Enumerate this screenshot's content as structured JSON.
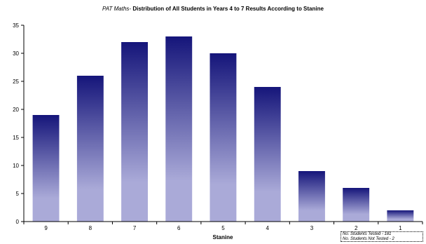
{
  "chart_data": {
    "type": "bar",
    "title_prefix": "PAT Maths-",
    "title": "Distribution of All Students in Years 4 to 7 Results According to Stanine",
    "xlabel": "Stanine",
    "ylabel": "",
    "categories": [
      "9",
      "8",
      "7",
      "6",
      "5",
      "4",
      "3",
      "2",
      "1"
    ],
    "values": [
      19,
      26,
      32,
      33,
      30,
      24,
      9,
      6,
      2
    ],
    "ylim": [
      0,
      35
    ],
    "yticks": [
      0,
      5,
      10,
      15,
      20,
      25,
      30,
      35
    ],
    "grid": false,
    "legend": "none",
    "colors": {
      "bar_top": "#15157a",
      "bar_bottom": "#aaaad8"
    }
  },
  "notes": {
    "tested": "No. Students Tested -   181",
    "not_tested": "No. Students Not Tested -  2"
  }
}
